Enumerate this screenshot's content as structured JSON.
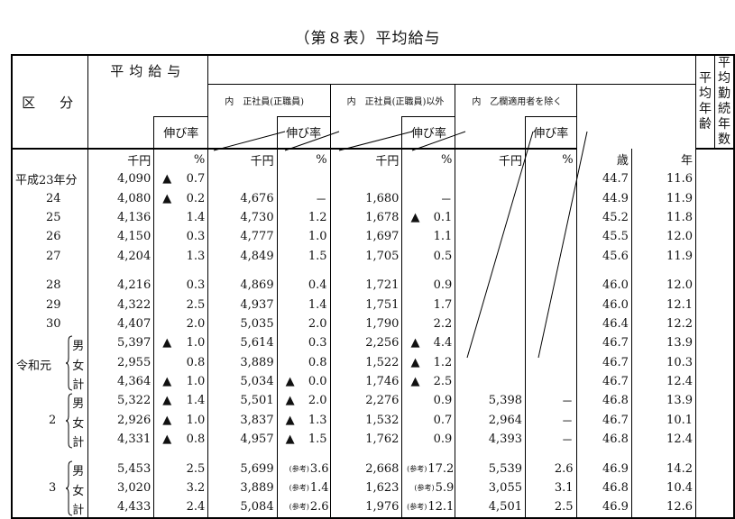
{
  "title": "（第８表）平均給与",
  "header": {
    "category": "区　分",
    "avg_salary": "平均給与",
    "regular": "内　正社員(正職員)",
    "non_regular": "内　正社員(正職員)以外",
    "excl_otsu": "内　乙欄適用者を除く",
    "growth": "伸び率",
    "avg_age": "平均\n年齢",
    "avg_tenure": "平均\n勤続年数"
  },
  "units": [
    "千円",
    "%",
    "千円",
    "%",
    "千円",
    "%",
    "千円",
    "%",
    "歳",
    "年"
  ],
  "icons": {
    "decline_marker": "black-triangle-up"
  },
  "rows": [
    {
      "label": "平成23年分",
      "v": [
        "4,090",
        [
          "▲",
          "0.7"
        ],
        "/",
        "/",
        "/",
        "/",
        "",
        "",
        "44.7",
        "11.6"
      ]
    },
    {
      "label": "24",
      "v": [
        "4,080",
        [
          "▲",
          "0.2"
        ],
        "4,676",
        "－",
        "1,680",
        "－",
        "",
        "",
        "44.9",
        "11.9"
      ]
    },
    {
      "label": "25",
      "v": [
        "4,136",
        "1.4",
        "4,730",
        "1.2",
        "1,678",
        [
          "▲",
          "0.1"
        ],
        "",
        "",
        "45.2",
        "11.8"
      ]
    },
    {
      "label": "26",
      "v": [
        "4,150",
        "0.3",
        "4,777",
        "1.0",
        "1,697",
        "1.1",
        "",
        "",
        "45.5",
        "12.0"
      ]
    },
    {
      "label": "27",
      "v": [
        "4,204",
        "1.3",
        "4,849",
        "1.5",
        "1,705",
        "0.5",
        "",
        "",
        "45.6",
        "11.9"
      ]
    },
    {
      "gap": true
    },
    {
      "label": "28",
      "v": [
        "4,216",
        "0.3",
        "4,869",
        "0.4",
        "1,721",
        "0.9",
        "",
        "",
        "46.0",
        "12.0"
      ]
    },
    {
      "label": "29",
      "v": [
        "4,322",
        "2.5",
        "4,937",
        "1.4",
        "1,751",
        "1.7",
        "",
        "",
        "46.0",
        "12.1"
      ]
    },
    {
      "label": "30",
      "v": [
        "4,407",
        "2.0",
        "5,035",
        "2.0",
        "1,790",
        "2.2",
        "",
        "",
        "46.4",
        "12.2"
      ]
    },
    {
      "sub": "男",
      "v": [
        "5,397",
        [
          "▲",
          "1.0"
        ],
        "5,614",
        "0.3",
        "2,256",
        [
          "▲",
          "4.4"
        ],
        "",
        "",
        "46.7",
        "13.9"
      ]
    },
    {
      "sub": "女",
      "era": "令和元",
      "v": [
        "2,955",
        "0.8",
        "3,889",
        "0.8",
        "1,522",
        [
          "▲",
          "1.2"
        ],
        "",
        "",
        "46.7",
        "10.3"
      ]
    },
    {
      "sub": "計",
      "v": [
        "4,364",
        [
          "▲",
          "1.0"
        ],
        "5,034",
        [
          "▲",
          "0.0"
        ],
        "1,746",
        [
          "▲",
          "2.5"
        ],
        "",
        "",
        "46.7",
        "12.4"
      ]
    },
    {
      "sub": "男",
      "v": [
        "5,322",
        [
          "▲",
          "1.4"
        ],
        "5,501",
        [
          "▲",
          "2.0"
        ],
        "2,276",
        "0.9",
        "5,398",
        "－",
        "46.8",
        "13.9"
      ]
    },
    {
      "sub": "女",
      "era": "2",
      "v": [
        "2,926",
        [
          "▲",
          "1.0"
        ],
        "3,837",
        [
          "▲",
          "1.3"
        ],
        "1,532",
        "0.7",
        "2,964",
        "－",
        "46.7",
        "10.1"
      ]
    },
    {
      "sub": "計",
      "v": [
        "4,331",
        [
          "▲",
          "0.8"
        ],
        "4,957",
        [
          "▲",
          "1.5"
        ],
        "1,762",
        "0.9",
        "4,393",
        "－",
        "46.8",
        "12.4"
      ]
    },
    {
      "gap": true
    },
    {
      "sub": "男",
      "v": [
        "5,453",
        "2.5",
        "5,699",
        [
          "(参考)",
          "3.6"
        ],
        "2,668",
        [
          "(参考)",
          "17.2"
        ],
        "5,539",
        "2.6",
        "46.9",
        "14.2"
      ]
    },
    {
      "sub": "女",
      "era": "3",
      "v": [
        "3,020",
        "3.2",
        "3,889",
        [
          "(参考)",
          "1.4"
        ],
        "1,623",
        [
          "(参考)",
          "5.9"
        ],
        "3,055",
        "3.1",
        "46.8",
        "10.4"
      ]
    },
    {
      "sub": "計",
      "v": [
        "4,433",
        "2.4",
        "5,084",
        [
          "(参考)",
          "2.6"
        ],
        "1,976",
        [
          "(参考)",
          "12.1"
        ],
        "4,501",
        "2.5",
        "46.9",
        "12.6"
      ]
    }
  ]
}
